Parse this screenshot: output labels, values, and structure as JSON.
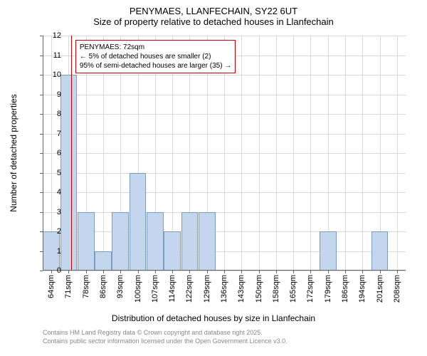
{
  "title_line1": "PENYMAES, LLANFECHAIN, SY22 6UT",
  "title_line2": "Size of property relative to detached houses in Llanfechain",
  "chart": {
    "type": "bar",
    "ylabel": "Number of detached properties",
    "xlabel": "Distribution of detached houses by size in Llanfechain",
    "ylim": [
      0,
      12
    ],
    "ytick_step": 1,
    "yticks": [
      0,
      1,
      2,
      3,
      4,
      5,
      6,
      7,
      8,
      9,
      10,
      11,
      12
    ],
    "x_categories_sqm": [
      64,
      71,
      78,
      86,
      93,
      100,
      107,
      114,
      122,
      129,
      136,
      143,
      150,
      158,
      165,
      172,
      179,
      186,
      194,
      201,
      208
    ],
    "values": [
      2,
      10,
      3,
      1,
      3,
      5,
      3,
      2,
      3,
      3,
      0,
      0,
      0,
      0,
      0,
      0,
      2,
      0,
      0,
      2,
      0
    ],
    "bar_fill": "#c4d6ed",
    "bar_border": "#7a9bc4",
    "grid_color": "#d9d9d9",
    "background_color": "#ffffff",
    "ref_line_sqm": 72,
    "ref_line_color": "#cc0000",
    "annotation": {
      "line1": "PENYMAES: 72sqm",
      "line2": "← 5% of detached houses are smaller (2)",
      "line3": "95% of semi-detached houses are larger (35) →",
      "border_color": "#cc0000"
    },
    "title_fontsize": 13,
    "label_fontsize": 12,
    "tick_fontsize": 11
  },
  "footer": {
    "line1": "Contains HM Land Registry data © Crown copyright and database right 2025.",
    "line2": "Contains public sector information licensed under the Open Government Licence v3.0.",
    "color": "#888888"
  }
}
